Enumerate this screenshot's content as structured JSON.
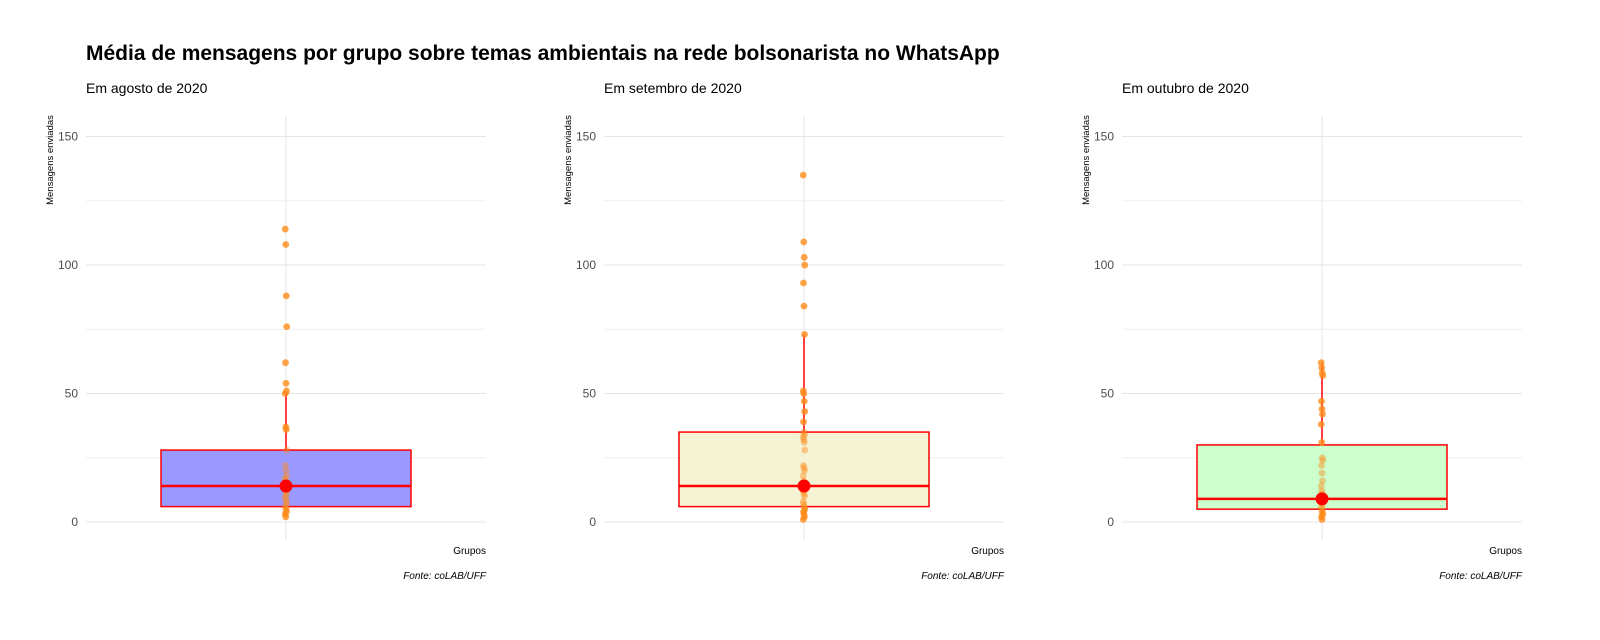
{
  "title": "Média de mensagens por grupo sobre temas ambientais na rede bolsonarista no WhatsApp",
  "colors": {
    "outline": "#ff0000",
    "points": "#ff8c1a",
    "grid": "#e6e6e6"
  },
  "chart_data": [
    {
      "type": "box",
      "subtitle": "Em agosto de 2020",
      "ylabel": "Mensagens enviadas",
      "xlabel": "Grupos",
      "caption": "Fonte: coLAB/UFF",
      "ylim": [
        -7,
        158
      ],
      "yticks": [
        0,
        50,
        100,
        150
      ],
      "fill": "#9999ff",
      "box": {
        "q1": 6,
        "median": 14,
        "q3": 28,
        "whisker_low": 2,
        "whisker_high": 50
      },
      "mean": 14,
      "points": [
        114,
        108,
        88,
        76,
        62,
        54,
        51,
        50,
        37,
        36,
        28,
        22,
        20,
        18,
        17,
        16,
        15,
        14,
        13,
        12,
        11,
        10,
        9,
        8,
        7,
        6,
        5,
        4,
        3,
        2
      ]
    },
    {
      "type": "box",
      "subtitle": "Em setembro de 2020",
      "ylabel": "Mensagens enviadas",
      "xlabel": "Grupos",
      "caption": "Fonte: coLAB/UFF",
      "ylim": [
        -7,
        158
      ],
      "yticks": [
        0,
        50,
        100,
        150
      ],
      "fill": "#f5f3d4",
      "box": {
        "q1": 6,
        "median": 14,
        "q3": 35,
        "whisker_low": 1,
        "whisker_high": 73
      },
      "mean": 14,
      "points": [
        135,
        109,
        103,
        100,
        93,
        84,
        73,
        51,
        50,
        47,
        43,
        39,
        35,
        34,
        33,
        32,
        31,
        28,
        22,
        21,
        20,
        18,
        16,
        14,
        13,
        12,
        11,
        10,
        8,
        7,
        6,
        5,
        4,
        3,
        2,
        1
      ]
    },
    {
      "type": "box",
      "subtitle": "Em outubro de 2020",
      "ylabel": "Mensagens enviadas",
      "xlabel": "Grupos",
      "caption": "Fonte: coLAB/UFF",
      "ylim": [
        -7,
        158
      ],
      "yticks": [
        0,
        50,
        100,
        150
      ],
      "fill": "#ccffcc",
      "box": {
        "q1": 5,
        "median": 9,
        "q3": 30,
        "whisker_low": 1,
        "whisker_high": 62
      },
      "mean": 9,
      "points": [
        62,
        60,
        58,
        57,
        47,
        44,
        42,
        38,
        31,
        25,
        24,
        22,
        19,
        16,
        14,
        12,
        11,
        10,
        9,
        8,
        7,
        6,
        5,
        4,
        3,
        2,
        1
      ]
    }
  ]
}
